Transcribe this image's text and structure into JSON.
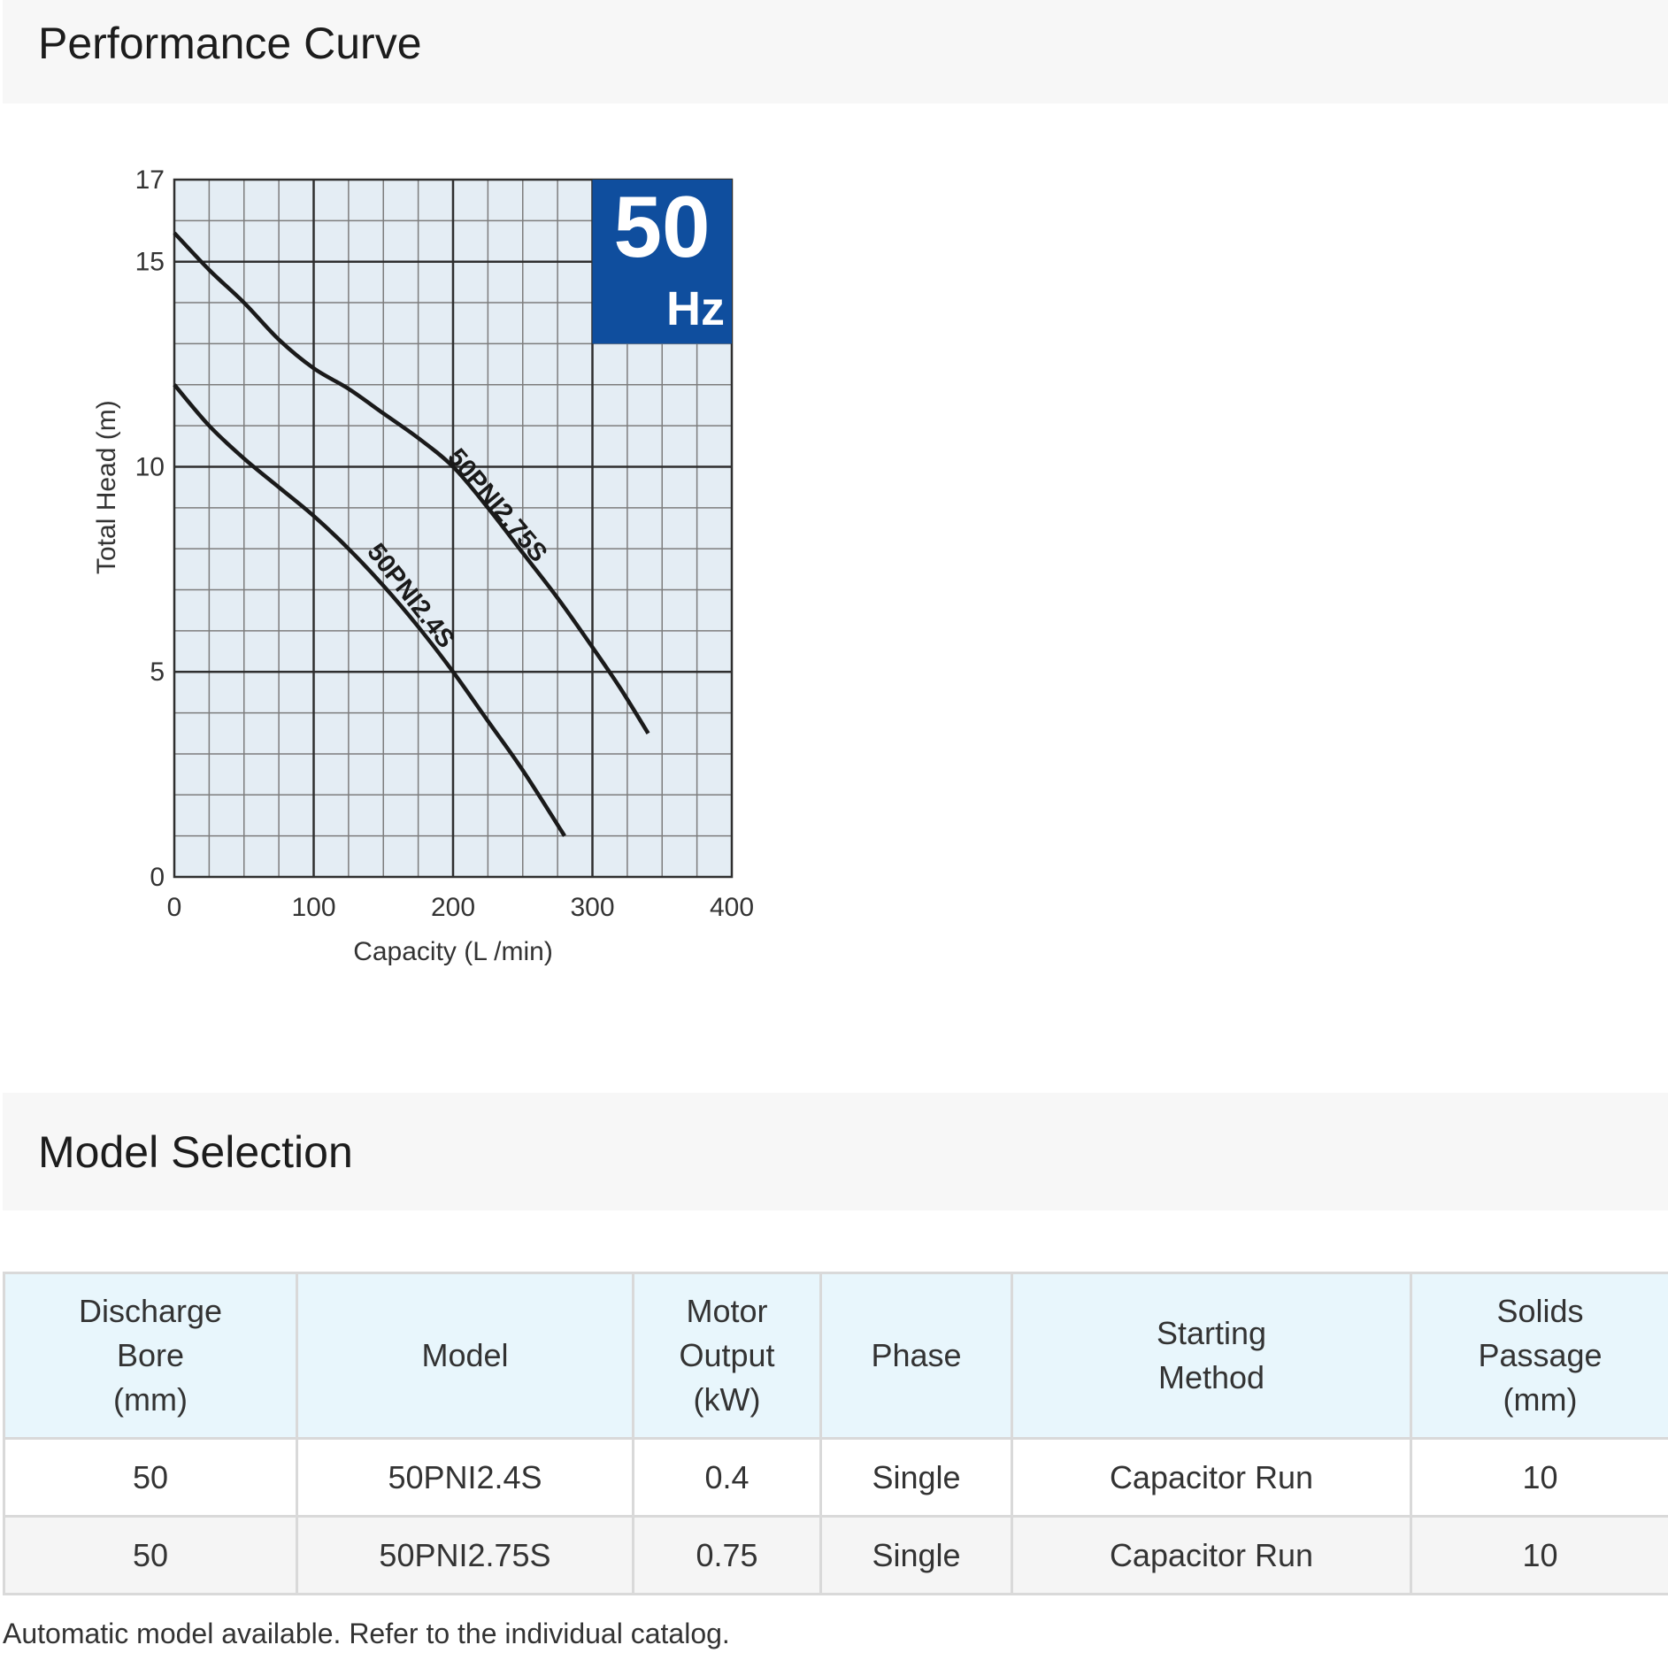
{
  "sections": {
    "performance_title": "Performance Curve",
    "model_title": "Model Selection"
  },
  "badge": {
    "big": "50",
    "unit": "Hz",
    "color": "#0f4e9e"
  },
  "chart_data": {
    "type": "line",
    "xlabel": "Capacity (L /min)",
    "ylabel": "Total Head (m)",
    "xlim": [
      0,
      400
    ],
    "ylim": [
      0,
      17
    ],
    "xticks": [
      0,
      100,
      200,
      300,
      400
    ],
    "yticks": [
      0,
      5,
      10,
      15,
      17
    ],
    "grid": true,
    "plot_background": "#e4edf4",
    "series": [
      {
        "name": "50PNI2.75S",
        "x": [
          0,
          25,
          50,
          75,
          100,
          125,
          150,
          175,
          200,
          225,
          250,
          275,
          300,
          320,
          340
        ],
        "y": [
          15.7,
          14.8,
          14.0,
          13.1,
          12.4,
          11.9,
          11.3,
          10.7,
          10.0,
          9.0,
          7.9,
          6.8,
          5.6,
          4.6,
          3.5
        ]
      },
      {
        "name": "50PNI2.4S",
        "x": [
          0,
          25,
          50,
          75,
          100,
          125,
          150,
          175,
          200,
          225,
          250,
          280
        ],
        "y": [
          12.0,
          11.0,
          10.2,
          9.5,
          8.8,
          8.0,
          7.1,
          6.1,
          5.0,
          3.8,
          2.6,
          1.0
        ]
      }
    ]
  },
  "table": {
    "headers": [
      [
        "Discharge",
        "Bore",
        "(mm)"
      ],
      [
        "Model"
      ],
      [
        "Motor",
        "Output",
        "(kW)"
      ],
      [
        "Phase"
      ],
      [
        "Starting",
        "Method"
      ],
      [
        "Solids",
        "Passage",
        "(mm)"
      ]
    ],
    "rows": [
      [
        "50",
        "50PNI2.4S",
        "0.4",
        "Single",
        "Capacitor Run",
        "10"
      ],
      [
        "50",
        "50PNI2.75S",
        "0.75",
        "Single",
        "Capacitor Run",
        "10"
      ]
    ]
  },
  "footnote": "Automatic model available. Refer to the individual catalog."
}
